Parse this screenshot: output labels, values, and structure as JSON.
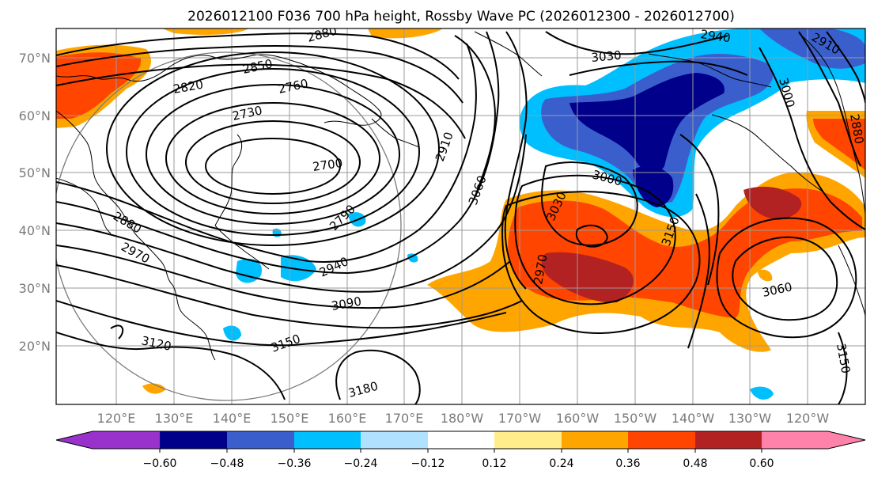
{
  "title": "2026012100 F036 700 hPa height, Rossby Wave PC (2026012300 - 2026012700)",
  "lat_labels": [
    "70°N",
    "60°N",
    "50°N",
    "40°N",
    "30°N",
    "20°N"
  ],
  "lon_labels": [
    "120°E",
    "130°E",
    "140°E",
    "150°E",
    "160°E",
    "170°E",
    "180°W",
    "170°W",
    "160°W",
    "150°W",
    "140°W",
    "130°W",
    "120°W"
  ],
  "colorbar": {
    "colors": [
      "#9932CC",
      "#00008B",
      "#3A5FCD",
      "#00BFFF",
      "#B0E2FF",
      "#FFFFFF",
      "#FFEC8B",
      "#FFA500",
      "#FF4500",
      "#B22222",
      "#FF82AB"
    ],
    "ticks": [
      "−0.60",
      "−0.48",
      "−0.36",
      "−0.24",
      "−0.12",
      "0.12",
      "0.24",
      "0.36",
      "0.48",
      "0.60"
    ]
  },
  "contour_labels": [
    "2880",
    "2850",
    "2820",
    "2760",
    "2730",
    "2700",
    "2910",
    "3030",
    "3060",
    "3000",
    "3030",
    "2970",
    "2790",
    "2940",
    "2880",
    "2970",
    "3090",
    "3120",
    "3150",
    "3180",
    "3150",
    "3060",
    "3150",
    "2940",
    "2910",
    "3000",
    "2880"
  ]
}
